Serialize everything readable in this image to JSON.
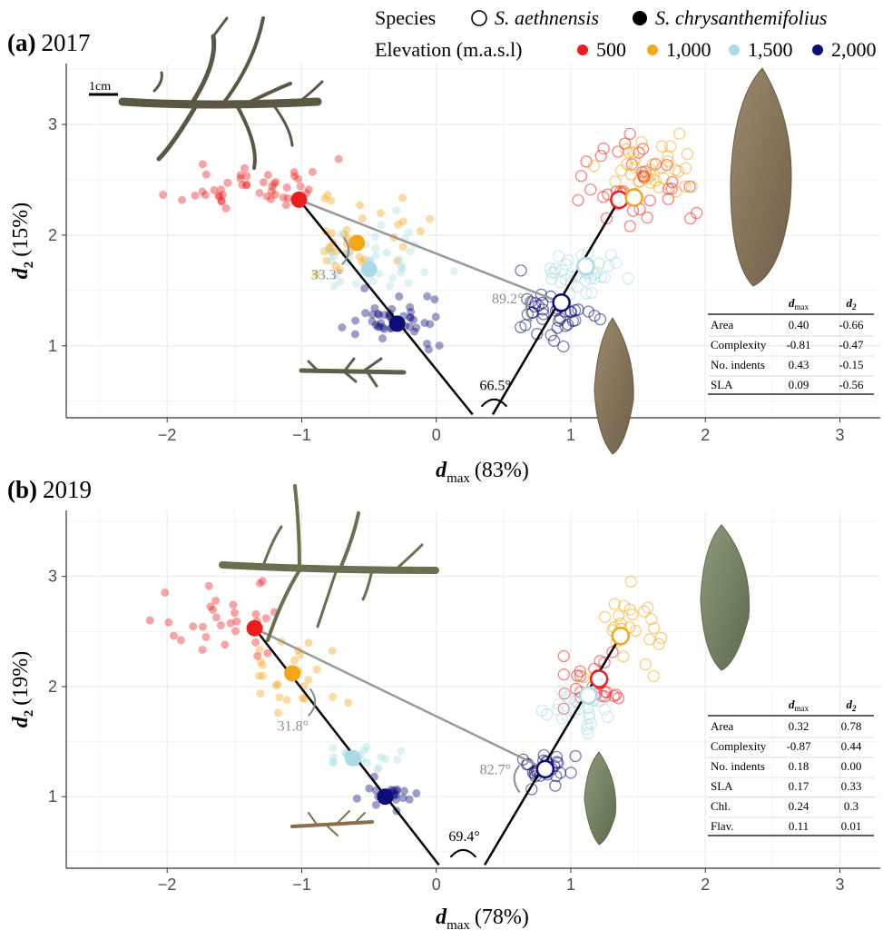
{
  "legend": {
    "species_title": "Species",
    "species": [
      {
        "label": "S. aethnensis",
        "style": "open"
      },
      {
        "label": "S. chrysanthemifolius",
        "style": "filled"
      }
    ],
    "elevation_title": "Elevation (m.a.s.l)",
    "elevations": [
      {
        "label": "500",
        "color": "#ee1c1c"
      },
      {
        "label": "1,000",
        "color": "#f5a615"
      },
      {
        "label": "1,500",
        "color": "#a9dbe6"
      },
      {
        "label": "2,000",
        "color": "#0d0d7a"
      }
    ]
  },
  "scale_bar_label": "1cm",
  "chart_data": [
    {
      "type": "scatter",
      "panel_letter": "(a)",
      "panel_year": "2017",
      "xlabel_sym": "d",
      "xlabel_sub": "max",
      "xlabel_pct": "(83%)",
      "ylabel_sym": "d",
      "ylabel_sub": "2",
      "ylabel_pct": "(15%)",
      "xlim": [
        -2.75,
        3.3
      ],
      "ylim": [
        0.35,
        3.55
      ],
      "x_ticks": [
        -2,
        -1,
        0,
        1,
        2,
        3
      ],
      "x_tick_labels": [
        "−2",
        "−1",
        "0",
        "1",
        "2",
        "3"
      ],
      "y_ticks": [
        1,
        2,
        3
      ],
      "y_tick_labels": [
        "1",
        "2",
        "3"
      ],
      "grid": true,
      "means": {
        "chrysanthemifolius": [
          {
            "elevation": "500",
            "x": -1.02,
            "y": 2.32
          },
          {
            "elevation": "1,000",
            "x": -0.59,
            "y": 1.93
          },
          {
            "elevation": "1,500",
            "x": -0.5,
            "y": 1.69
          },
          {
            "elevation": "2,000",
            "x": -0.29,
            "y": 1.2
          }
        ],
        "aethnensis": [
          {
            "elevation": "500",
            "x": 1.36,
            "y": 2.32
          },
          {
            "elevation": "1,000",
            "x": 1.47,
            "y": 2.34
          },
          {
            "elevation": "1,500",
            "x": 1.11,
            "y": 1.72
          },
          {
            "elevation": "2,000",
            "x": 0.93,
            "y": 1.39
          }
        ]
      },
      "vectors": {
        "apex": {
          "x": 0.27,
          "y": 0.38
        },
        "apex_b": {
          "x": 0.42,
          "y": 0.38
        },
        "chrys_end": {
          "x": -1.02,
          "y": 2.32
        },
        "aeth_end": {
          "x": 1.36,
          "y": 2.32
        },
        "connector": [
          {
            "x": -1.02,
            "y": 2.32
          },
          {
            "x": 0.93,
            "y": 1.39
          }
        ]
      },
      "angles": [
        {
          "label": "33.3°",
          "x": -0.85,
          "y": 1.75,
          "color": "#8c8c8c"
        },
        {
          "label": "89.2°",
          "x": 0.44,
          "y": 1.4,
          "color": "#8c8c8c"
        },
        {
          "label": "66.5°",
          "x": 0.43,
          "y": 0.5,
          "color": "#000000"
        }
      ],
      "table": {
        "columns": [
          "dmax",
          "d2"
        ],
        "rows": [
          {
            "trait": "Area",
            "dmax": "0.40",
            "d2": "-0.66"
          },
          {
            "trait": "Complexity",
            "dmax": "-0.81",
            "d2": "-0.47"
          },
          {
            "trait": "No. indents",
            "dmax": "0.43",
            "d2": "-0.15"
          },
          {
            "trait": "SLA",
            "dmax": "0.09",
            "d2": "-0.56"
          }
        ]
      },
      "point_clouds": [
        {
          "species": "chrysanthemifolius",
          "elevation": "500",
          "cx": -1.35,
          "cy": 2.45,
          "sx": 0.45,
          "sy": 0.2,
          "n": 45
        },
        {
          "species": "chrysanthemifolius",
          "elevation": "1,000",
          "cx": -0.6,
          "cy": 2.0,
          "sx": 0.35,
          "sy": 0.3,
          "n": 35
        },
        {
          "species": "chrysanthemifolius",
          "elevation": "1,500",
          "cx": -0.5,
          "cy": 1.75,
          "sx": 0.35,
          "sy": 0.25,
          "n": 40
        },
        {
          "species": "chrysanthemifolius",
          "elevation": "2,000",
          "cx": -0.3,
          "cy": 1.22,
          "sx": 0.25,
          "sy": 0.2,
          "n": 45
        },
        {
          "species": "aethnensis",
          "elevation": "500",
          "cx": 1.45,
          "cy": 2.45,
          "sx": 0.35,
          "sy": 0.35,
          "n": 40
        },
        {
          "species": "aethnensis",
          "elevation": "1,000",
          "cx": 1.55,
          "cy": 2.55,
          "sx": 0.3,
          "sy": 0.25,
          "n": 35
        },
        {
          "species": "aethnensis",
          "elevation": "1,500",
          "cx": 1.05,
          "cy": 1.65,
          "sx": 0.25,
          "sy": 0.2,
          "n": 35
        },
        {
          "species": "aethnensis",
          "elevation": "2,000",
          "cx": 0.9,
          "cy": 1.3,
          "sx": 0.22,
          "sy": 0.2,
          "n": 40
        }
      ]
    },
    {
      "type": "scatter",
      "panel_letter": "(b)",
      "panel_year": "2019",
      "xlabel_sym": "d",
      "xlabel_sub": "max",
      "xlabel_pct": "(78%)",
      "ylabel_sym": "d",
      "ylabel_sub": "2",
      "ylabel_pct": "(19%)",
      "xlim": [
        -2.75,
        3.3
      ],
      "ylim": [
        0.35,
        3.6
      ],
      "x_ticks": [
        -2,
        -1,
        0,
        1,
        2,
        3
      ],
      "x_tick_labels": [
        "−2",
        "−1",
        "0",
        "1",
        "2",
        "3"
      ],
      "y_ticks": [
        1,
        2,
        3
      ],
      "y_tick_labels": [
        "1",
        "2",
        "3"
      ],
      "grid": true,
      "means": {
        "chrysanthemifolius": [
          {
            "elevation": "500",
            "x": -1.35,
            "y": 2.53
          },
          {
            "elevation": "1,000",
            "x": -1.07,
            "y": 2.12
          },
          {
            "elevation": "1,500",
            "x": -0.62,
            "y": 1.35
          },
          {
            "elevation": "2,000",
            "x": -0.38,
            "y": 1.0
          }
        ],
        "aethnensis": [
          {
            "elevation": "500",
            "x": 1.21,
            "y": 2.07
          },
          {
            "elevation": "1,000",
            "x": 1.37,
            "y": 2.46
          },
          {
            "elevation": "1,500",
            "x": 1.13,
            "y": 1.92
          },
          {
            "elevation": "2,000",
            "x": 0.81,
            "y": 1.25
          }
        ]
      },
      "vectors": {
        "apex": {
          "x": 0.02,
          "y": 0.38
        },
        "apex_b": {
          "x": 0.36,
          "y": 0.38
        },
        "chrys_end": {
          "x": -1.35,
          "y": 2.53
        },
        "aeth_end": {
          "x": 1.37,
          "y": 2.46
        },
        "connector": [
          {
            "x": -1.35,
            "y": 2.53
          },
          {
            "x": 0.81,
            "y": 1.25
          }
        ]
      },
      "angles": [
        {
          "label": "31.8°",
          "x": -1.1,
          "y": 1.75,
          "color": "#8c8c8c"
        },
        {
          "label": "82.7°",
          "x": 0.35,
          "y": 1.22,
          "color": "#8c8c8c"
        },
        {
          "label": "69.4°",
          "x": 0.2,
          "y": 0.5,
          "color": "#000000"
        }
      ],
      "table": {
        "columns": [
          "dmax",
          "d2"
        ],
        "rows": [
          {
            "trait": "Area",
            "dmax": "0.32",
            "d2": "0.78"
          },
          {
            "trait": "Complexity",
            "dmax": "-0.87",
            "d2": "0.44"
          },
          {
            "trait": "No. indents",
            "dmax": "0.18",
            "d2": "0.00"
          },
          {
            "trait": "SLA",
            "dmax": "0.17",
            "d2": "0.33"
          },
          {
            "trait": "Chl.",
            "dmax": "0.24",
            "d2": "0.3"
          },
          {
            "trait": "Flav.",
            "dmax": "0.11",
            "d2": "0.01"
          }
        ]
      },
      "point_clouds": [
        {
          "species": "chrysanthemifolius",
          "elevation": "500",
          "cx": -1.55,
          "cy": 2.6,
          "sx": 0.45,
          "sy": 0.3,
          "n": 30
        },
        {
          "species": "chrysanthemifolius",
          "elevation": "1,000",
          "cx": -1.05,
          "cy": 2.1,
          "sx": 0.4,
          "sy": 0.25,
          "n": 25
        },
        {
          "species": "chrysanthemifolius",
          "elevation": "1,500",
          "cx": -0.6,
          "cy": 1.35,
          "sx": 0.3,
          "sy": 0.12,
          "n": 20
        },
        {
          "species": "chrysanthemifolius",
          "elevation": "2,000",
          "cx": -0.35,
          "cy": 1.0,
          "sx": 0.22,
          "sy": 0.12,
          "n": 22
        },
        {
          "species": "aethnensis",
          "elevation": "500",
          "cx": 1.15,
          "cy": 2.05,
          "sx": 0.18,
          "sy": 0.2,
          "n": 25
        },
        {
          "species": "aethnensis",
          "elevation": "1,000",
          "cx": 1.45,
          "cy": 2.5,
          "sx": 0.25,
          "sy": 0.35,
          "n": 25
        },
        {
          "species": "aethnensis",
          "elevation": "1,500",
          "cx": 1.05,
          "cy": 1.75,
          "sx": 0.2,
          "sy": 0.2,
          "n": 25
        },
        {
          "species": "aethnensis",
          "elevation": "2,000",
          "cx": 0.8,
          "cy": 1.25,
          "sx": 0.15,
          "sy": 0.12,
          "n": 30
        }
      ]
    }
  ]
}
